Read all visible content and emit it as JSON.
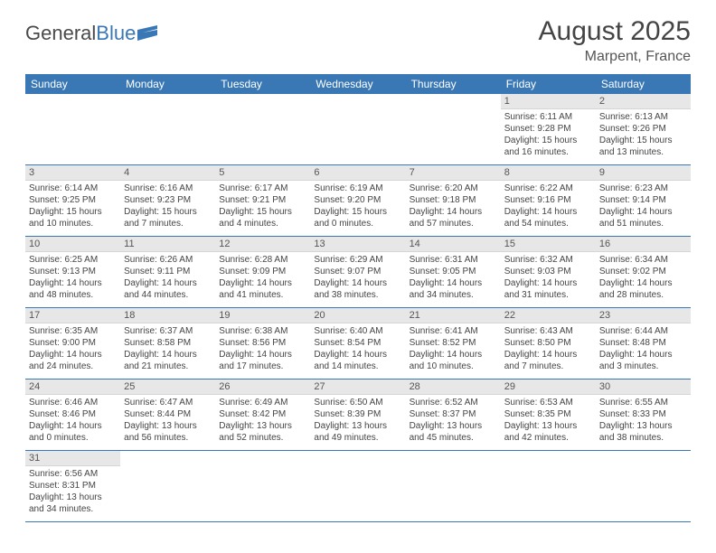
{
  "brand": {
    "part1": "General",
    "part2": "Blue"
  },
  "title": "August 2025",
  "location": "Marpent, France",
  "colors": {
    "header_bg": "#3a78b5",
    "header_text": "#ffffff",
    "daynum_bg": "#e7e7e7",
    "row_border": "#3a78b5",
    "text": "#444444"
  },
  "dayNames": [
    "Sunday",
    "Monday",
    "Tuesday",
    "Wednesday",
    "Thursday",
    "Friday",
    "Saturday"
  ],
  "leadingBlanks": 5,
  "days": [
    {
      "n": 1,
      "sr": "6:11 AM",
      "ss": "9:28 PM",
      "dl": "15 hours and 16 minutes."
    },
    {
      "n": 2,
      "sr": "6:13 AM",
      "ss": "9:26 PM",
      "dl": "15 hours and 13 minutes."
    },
    {
      "n": 3,
      "sr": "6:14 AM",
      "ss": "9:25 PM",
      "dl": "15 hours and 10 minutes."
    },
    {
      "n": 4,
      "sr": "6:16 AM",
      "ss": "9:23 PM",
      "dl": "15 hours and 7 minutes."
    },
    {
      "n": 5,
      "sr": "6:17 AM",
      "ss": "9:21 PM",
      "dl": "15 hours and 4 minutes."
    },
    {
      "n": 6,
      "sr": "6:19 AM",
      "ss": "9:20 PM",
      "dl": "15 hours and 0 minutes."
    },
    {
      "n": 7,
      "sr": "6:20 AM",
      "ss": "9:18 PM",
      "dl": "14 hours and 57 minutes."
    },
    {
      "n": 8,
      "sr": "6:22 AM",
      "ss": "9:16 PM",
      "dl": "14 hours and 54 minutes."
    },
    {
      "n": 9,
      "sr": "6:23 AM",
      "ss": "9:14 PM",
      "dl": "14 hours and 51 minutes."
    },
    {
      "n": 10,
      "sr": "6:25 AM",
      "ss": "9:13 PM",
      "dl": "14 hours and 48 minutes."
    },
    {
      "n": 11,
      "sr": "6:26 AM",
      "ss": "9:11 PM",
      "dl": "14 hours and 44 minutes."
    },
    {
      "n": 12,
      "sr": "6:28 AM",
      "ss": "9:09 PM",
      "dl": "14 hours and 41 minutes."
    },
    {
      "n": 13,
      "sr": "6:29 AM",
      "ss": "9:07 PM",
      "dl": "14 hours and 38 minutes."
    },
    {
      "n": 14,
      "sr": "6:31 AM",
      "ss": "9:05 PM",
      "dl": "14 hours and 34 minutes."
    },
    {
      "n": 15,
      "sr": "6:32 AM",
      "ss": "9:03 PM",
      "dl": "14 hours and 31 minutes."
    },
    {
      "n": 16,
      "sr": "6:34 AM",
      "ss": "9:02 PM",
      "dl": "14 hours and 28 minutes."
    },
    {
      "n": 17,
      "sr": "6:35 AM",
      "ss": "9:00 PM",
      "dl": "14 hours and 24 minutes."
    },
    {
      "n": 18,
      "sr": "6:37 AM",
      "ss": "8:58 PM",
      "dl": "14 hours and 21 minutes."
    },
    {
      "n": 19,
      "sr": "6:38 AM",
      "ss": "8:56 PM",
      "dl": "14 hours and 17 minutes."
    },
    {
      "n": 20,
      "sr": "6:40 AM",
      "ss": "8:54 PM",
      "dl": "14 hours and 14 minutes."
    },
    {
      "n": 21,
      "sr": "6:41 AM",
      "ss": "8:52 PM",
      "dl": "14 hours and 10 minutes."
    },
    {
      "n": 22,
      "sr": "6:43 AM",
      "ss": "8:50 PM",
      "dl": "14 hours and 7 minutes."
    },
    {
      "n": 23,
      "sr": "6:44 AM",
      "ss": "8:48 PM",
      "dl": "14 hours and 3 minutes."
    },
    {
      "n": 24,
      "sr": "6:46 AM",
      "ss": "8:46 PM",
      "dl": "14 hours and 0 minutes."
    },
    {
      "n": 25,
      "sr": "6:47 AM",
      "ss": "8:44 PM",
      "dl": "13 hours and 56 minutes."
    },
    {
      "n": 26,
      "sr": "6:49 AM",
      "ss": "8:42 PM",
      "dl": "13 hours and 52 minutes."
    },
    {
      "n": 27,
      "sr": "6:50 AM",
      "ss": "8:39 PM",
      "dl": "13 hours and 49 minutes."
    },
    {
      "n": 28,
      "sr": "6:52 AM",
      "ss": "8:37 PM",
      "dl": "13 hours and 45 minutes."
    },
    {
      "n": 29,
      "sr": "6:53 AM",
      "ss": "8:35 PM",
      "dl": "13 hours and 42 minutes."
    },
    {
      "n": 30,
      "sr": "6:55 AM",
      "ss": "8:33 PM",
      "dl": "13 hours and 38 minutes."
    },
    {
      "n": 31,
      "sr": "6:56 AM",
      "ss": "8:31 PM",
      "dl": "13 hours and 34 minutes."
    }
  ],
  "labels": {
    "sunrise": "Sunrise:",
    "sunset": "Sunset:",
    "daylight": "Daylight:"
  }
}
